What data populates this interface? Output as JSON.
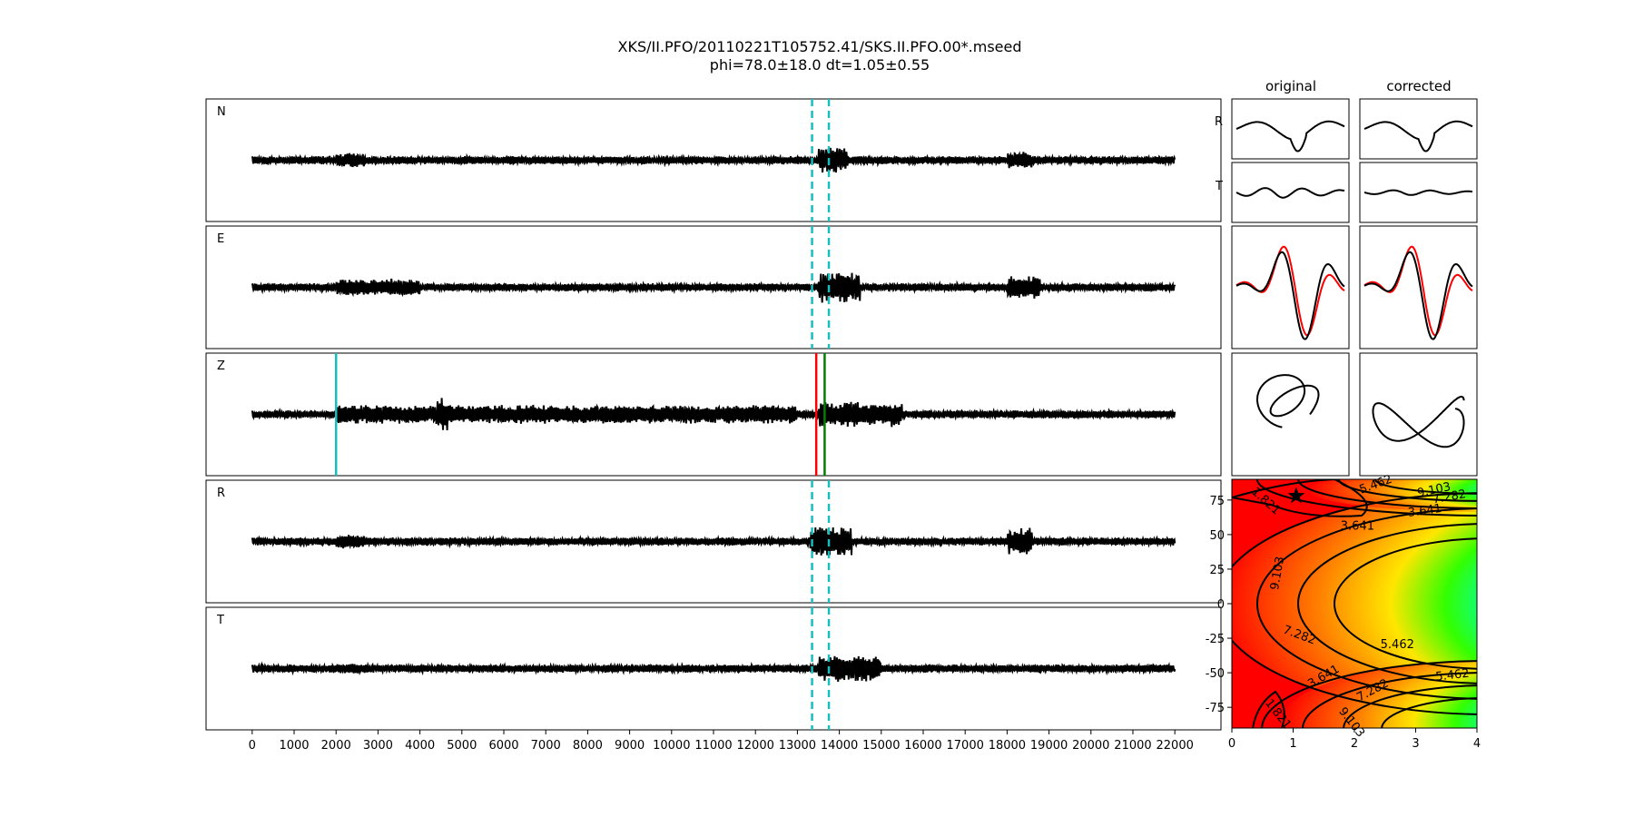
{
  "chart_data": {
    "type": "line",
    "title_line1": "XKS/II.PFO/20110221T105752.41/SKS.II.PFO.00*.mseed",
    "title_line2": "phi=78.0±18.0 dt=1.05±0.55",
    "column_titles": [
      "original",
      "corrected"
    ],
    "traces": {
      "channels": [
        "N",
        "E",
        "Z",
        "R",
        "T"
      ],
      "x_ticks": [
        0,
        1000,
        2000,
        3000,
        4000,
        5000,
        6000,
        7000,
        8000,
        9000,
        10000,
        11000,
        12000,
        13000,
        14000,
        15000,
        16000,
        17000,
        18000,
        19000,
        20000,
        21000,
        22000
      ],
      "xlim": [
        -1100,
        23100
      ],
      "x_start": 0,
      "x_end": 22000,
      "window_markers": [
        13350,
        13750
      ],
      "z_markers": [
        {
          "x": 2000,
          "color": "#17bebe"
        },
        {
          "x": 13450,
          "color": "#ff0000"
        },
        {
          "x": 13650,
          "color": "#008000"
        }
      ]
    },
    "particle_motion": {
      "row_labels": [
        "R",
        "T"
      ]
    },
    "error_surface": {
      "x_ticks": [
        0,
        1,
        2,
        3,
        4
      ],
      "y_ticks": [
        75,
        50,
        25,
        0,
        -25,
        -50,
        -75
      ],
      "xlim": [
        0,
        4
      ],
      "ylim": [
        -90,
        90
      ],
      "best_fit": {
        "dt": 1.05,
        "phi": 78.0
      },
      "contour_labels": [
        {
          "text": "1.821",
          "dt": 0.55,
          "phi": 74,
          "rot": 42
        },
        {
          "text": "5.462",
          "dt": 2.35,
          "phi": 86,
          "rot": -20
        },
        {
          "text": "9.103",
          "dt": 3.3,
          "phi": 82,
          "rot": -12
        },
        {
          "text": "7.282",
          "dt": 3.55,
          "phi": 77,
          "rot": -10
        },
        {
          "text": "3.641",
          "dt": 3.15,
          "phi": 67,
          "rot": -8
        },
        {
          "text": "3.641",
          "dt": 2.05,
          "phi": 56,
          "rot": 0
        },
        {
          "text": "9.103",
          "dt": 0.75,
          "phi": 22,
          "rot": -80
        },
        {
          "text": "7.282",
          "dt": 1.1,
          "phi": -23,
          "rot": 20
        },
        {
          "text": "5.462",
          "dt": 2.7,
          "phi": -30,
          "rot": 0
        },
        {
          "text": "5.462",
          "dt": 3.6,
          "phi": -52,
          "rot": -6
        },
        {
          "text": "3.641",
          "dt": 1.5,
          "phi": -53,
          "rot": -30
        },
        {
          "text": "7.282",
          "dt": 2.3,
          "phi": -63,
          "rot": -28
        },
        {
          "text": "1.821",
          "dt": 0.75,
          "phi": -80,
          "rot": 52
        },
        {
          "text": "9.103",
          "dt": 1.95,
          "phi": -86,
          "rot": 52
        }
      ]
    },
    "colors": {
      "trace": "#000000",
      "window": "#17bebe",
      "rotated_radial": "#ff0000"
    }
  }
}
